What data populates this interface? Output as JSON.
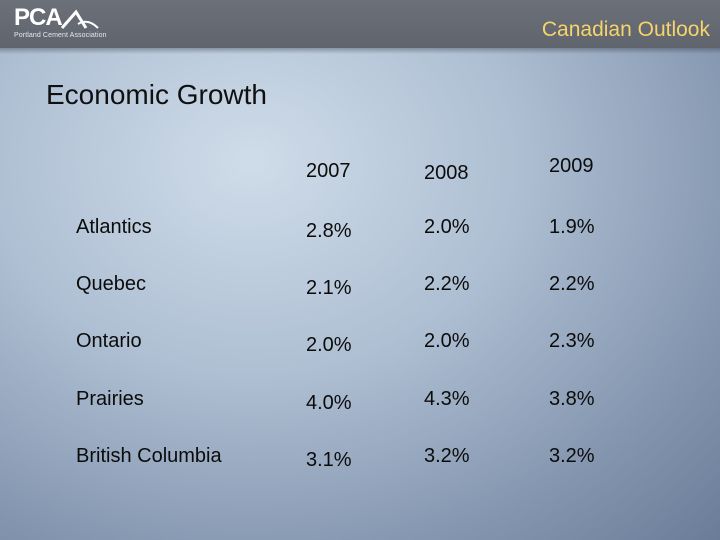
{
  "header": {
    "logo_text": "PCA",
    "logo_subtitle": "Portland Cement Association",
    "title": "Canadian Outlook"
  },
  "slide": {
    "title": "Economic Growth"
  },
  "table": {
    "columns": [
      "2007",
      "2008",
      "2009"
    ],
    "rows": [
      {
        "region": "Atlantics",
        "values": [
          "2.8%",
          "2.0%",
          "1.9%"
        ]
      },
      {
        "region": "Quebec",
        "values": [
          "2.1%",
          "2.2%",
          "2.2%"
        ]
      },
      {
        "region": "Ontario",
        "values": [
          "2.0%",
          "2.0%",
          "2.3%"
        ]
      },
      {
        "region": "Prairies",
        "values": [
          "4.0%",
          "4.3%",
          "3.8%"
        ]
      },
      {
        "region": "British Columbia",
        "values": [
          "3.1%",
          "3.2%",
          "3.2%"
        ]
      }
    ]
  },
  "colors": {
    "header_bg": "#666b74",
    "header_title": "#f6d36b"
  }
}
